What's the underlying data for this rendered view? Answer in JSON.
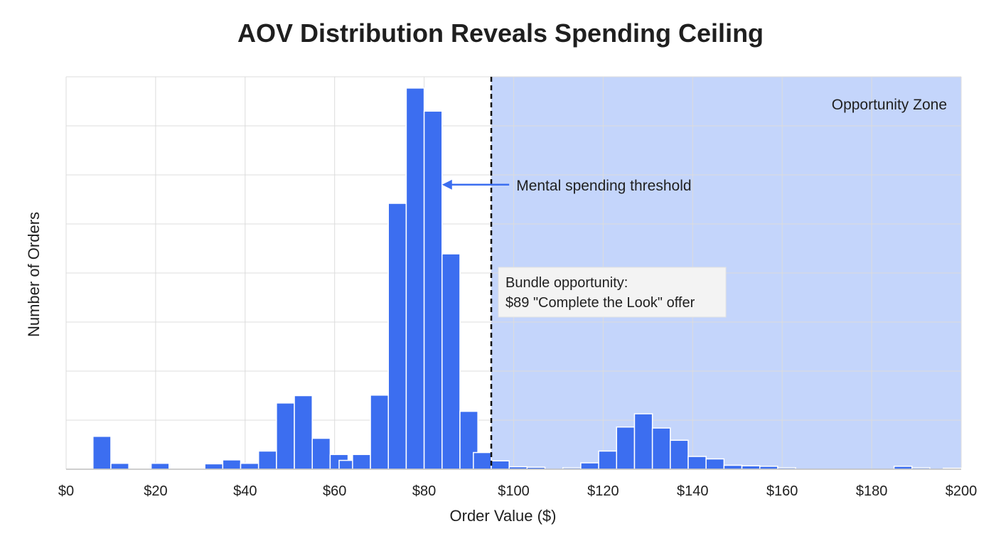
{
  "chart_data": {
    "type": "bar",
    "title": "AOV Distribution Reveals Spending Ceiling",
    "xlabel": "Order Value ($)",
    "ylabel": "Number of Orders",
    "xlim": [
      0,
      200
    ],
    "ylim": [
      0,
      80
    ],
    "x_ticks": [
      0,
      20,
      40,
      60,
      80,
      100,
      120,
      140,
      160,
      180,
      200
    ],
    "x_tick_labels": [
      "$0",
      "$20",
      "$40",
      "$60",
      "$80",
      "$100",
      "$120",
      "$140",
      "$160",
      "$180",
      "$200"
    ],
    "y_gridlines": [
      0,
      10,
      20,
      30,
      40,
      50,
      60,
      70,
      80
    ],
    "y_tick_labels_shown": false,
    "bin_width": 4,
    "bars": [
      {
        "x0": 6,
        "x1": 10,
        "value": 6.7
      },
      {
        "x0": 10,
        "x1": 14,
        "value": 1.2
      },
      {
        "x0": 19,
        "x1": 23,
        "value": 1.2
      },
      {
        "x0": 31,
        "x1": 35,
        "value": 1.1
      },
      {
        "x0": 35,
        "x1": 39,
        "value": 1.9
      },
      {
        "x0": 39,
        "x1": 43,
        "value": 1.2
      },
      {
        "x0": 43,
        "x1": 47,
        "value": 3.7
      },
      {
        "x0": 47,
        "x1": 51,
        "value": 13.5
      },
      {
        "x0": 51,
        "x1": 55,
        "value": 15.0
      },
      {
        "x0": 55,
        "x1": 59,
        "value": 6.3
      },
      {
        "x0": 59,
        "x1": 63,
        "value": 3.0
      },
      {
        "x0": 61,
        "x1": 65,
        "value": 1.8
      },
      {
        "x0": 64,
        "x1": 68,
        "value": 3.0
      },
      {
        "x0": 68,
        "x1": 72,
        "value": 15.1
      },
      {
        "x0": 72,
        "x1": 76,
        "value": 54.2
      },
      {
        "x0": 76,
        "x1": 80,
        "value": 77.7
      },
      {
        "x0": 80,
        "x1": 84,
        "value": 73.0
      },
      {
        "x0": 84,
        "x1": 88,
        "value": 43.9
      },
      {
        "x0": 88,
        "x1": 92,
        "value": 11.8
      },
      {
        "x0": 91,
        "x1": 95,
        "value": 3.4
      },
      {
        "x0": 95,
        "x1": 99,
        "value": 1.7
      },
      {
        "x0": 99,
        "x1": 103,
        "value": 0.5
      },
      {
        "x0": 103,
        "x1": 107,
        "value": 0.4
      },
      {
        "x0": 111,
        "x1": 115,
        "value": 0.3
      },
      {
        "x0": 115,
        "x1": 119,
        "value": 1.3
      },
      {
        "x0": 119,
        "x1": 123,
        "value": 3.7
      },
      {
        "x0": 123,
        "x1": 127,
        "value": 8.6
      },
      {
        "x0": 127,
        "x1": 131,
        "value": 11.3
      },
      {
        "x0": 131,
        "x1": 135,
        "value": 8.4
      },
      {
        "x0": 135,
        "x1": 139,
        "value": 5.9
      },
      {
        "x0": 139,
        "x1": 143,
        "value": 2.6
      },
      {
        "x0": 143,
        "x1": 147,
        "value": 2.1
      },
      {
        "x0": 147,
        "x1": 151,
        "value": 0.8
      },
      {
        "x0": 151,
        "x1": 155,
        "value": 0.7
      },
      {
        "x0": 155,
        "x1": 159,
        "value": 0.6
      },
      {
        "x0": 159,
        "x1": 163,
        "value": 0.3
      },
      {
        "x0": 185,
        "x1": 189,
        "value": 0.6
      },
      {
        "x0": 189,
        "x1": 193,
        "value": 0.3
      },
      {
        "x0": 196,
        "x1": 200,
        "value": 0.2
      }
    ],
    "threshold_value": 95,
    "opportunity_zone": {
      "from": 95,
      "to": 200,
      "label": "Opportunity Zone"
    },
    "annotations": {
      "threshold": {
        "text": "Mental spending threshold",
        "x_from": 99,
        "x_to": 84,
        "y": 58
      },
      "bundle": {
        "line1": "Bundle opportunity:",
        "line2": "$89 \"Complete the Look\" offer"
      }
    },
    "colors": {
      "bar": "#3c6ef0",
      "bar_edge": "#ffffff",
      "zone": "#c4d5fb",
      "grid": "#dcdcdc",
      "threshold": "#111111",
      "arrow": "#3c6ef0"
    }
  }
}
